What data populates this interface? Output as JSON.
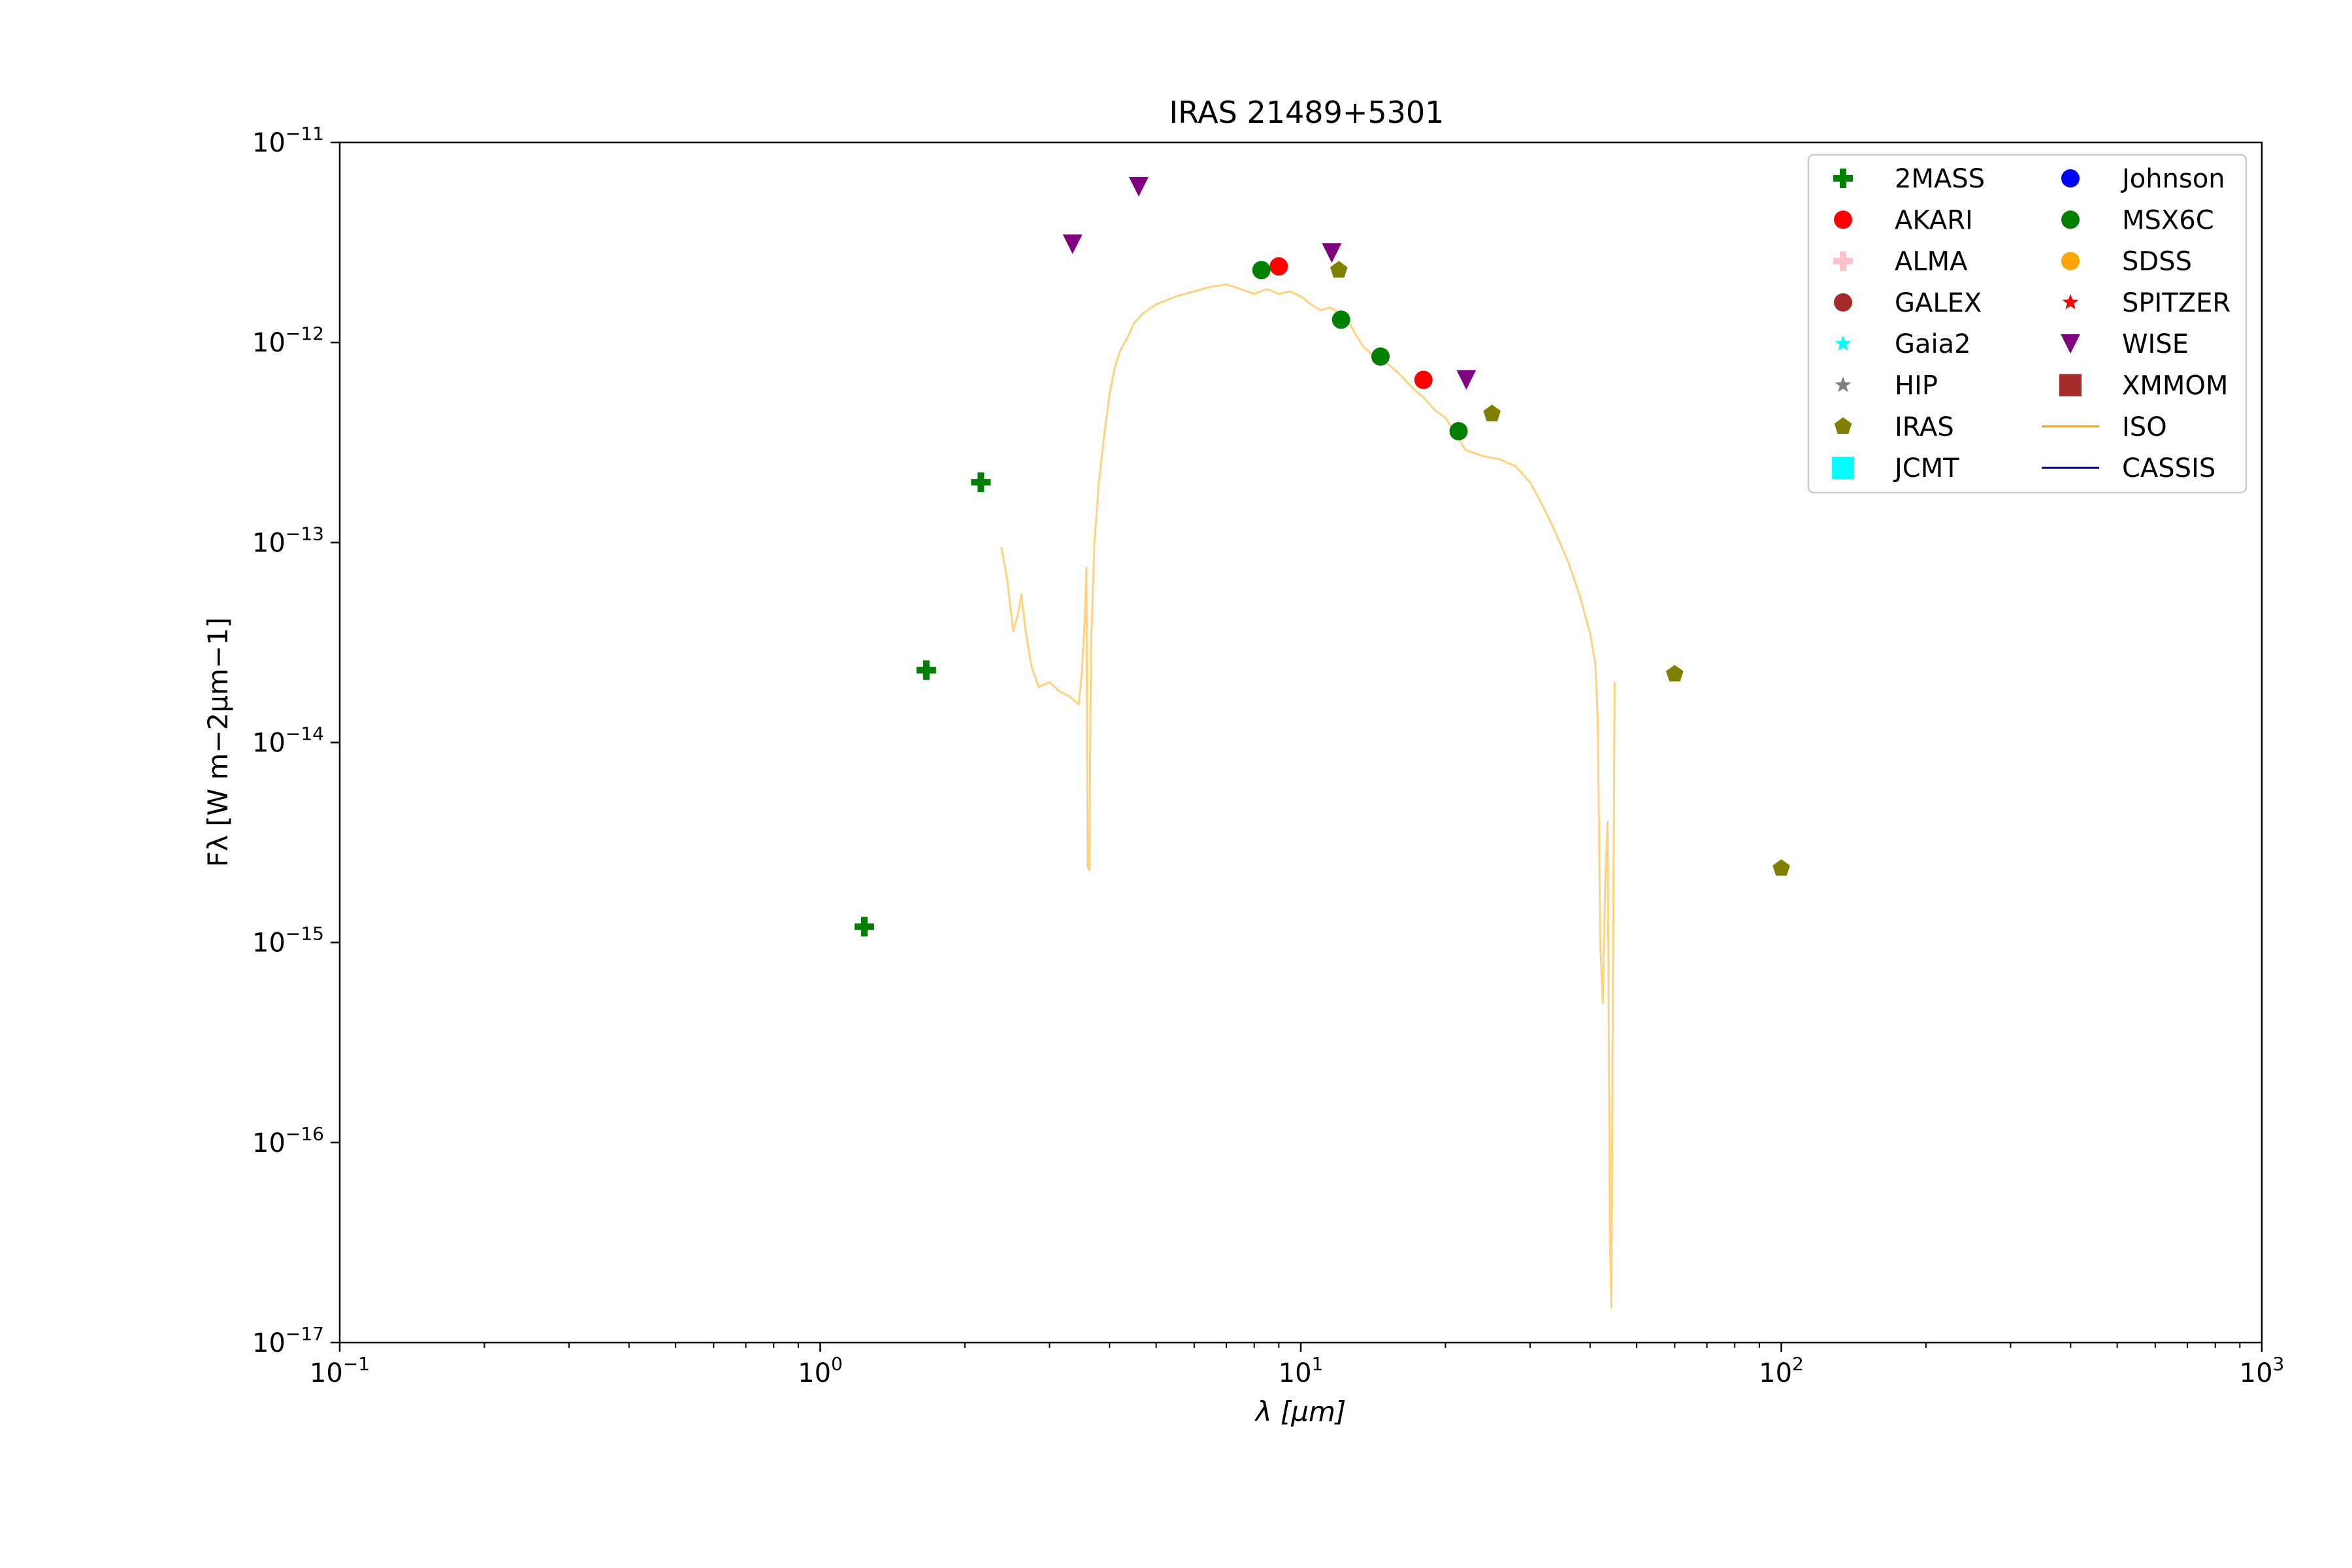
{
  "chart_data": {
    "type": "scatter",
    "title": "IRAS 21489+5301",
    "xlabel": "λ [μm]",
    "ylabel": "Fλ [W m−2μm−1]",
    "xscale": "log",
    "yscale": "log",
    "xlim": [
      0.1,
      1000
    ],
    "ylim": [
      1e-17,
      1e-11
    ],
    "x_ticks": [
      {
        "value": 0.1,
        "base": "10",
        "exp": "−1"
      },
      {
        "value": 1,
        "base": "10",
        "exp": "0"
      },
      {
        "value": 10,
        "base": "10",
        "exp": "1"
      },
      {
        "value": 100,
        "base": "10",
        "exp": "2"
      },
      {
        "value": 1000,
        "base": "10",
        "exp": "3"
      }
    ],
    "y_ticks": [
      {
        "value": 1e-11,
        "base": "10",
        "exp": "−11"
      },
      {
        "value": 1e-12,
        "base": "10",
        "exp": "−12"
      },
      {
        "value": 1e-13,
        "base": "10",
        "exp": "−13"
      },
      {
        "value": 1e-14,
        "base": "10",
        "exp": "−14"
      },
      {
        "value": 1e-15,
        "base": "10",
        "exp": "−15"
      },
      {
        "value": 1e-16,
        "base": "10",
        "exp": "−16"
      },
      {
        "value": 1e-17,
        "base": "10",
        "exp": "−17"
      }
    ],
    "grid": false,
    "legend_position": "top-right",
    "series": [
      {
        "name": "2MASS",
        "marker": "plus",
        "color": "#008000",
        "points": [
          [
            1.235,
            1.2e-15
          ],
          [
            1.662,
            2.3e-14
          ],
          [
            2.159,
            2e-13
          ]
        ]
      },
      {
        "name": "AKARI",
        "marker": "circle",
        "color": "#ff0000",
        "points": [
          [
            9.0,
            2.4e-12
          ],
          [
            18.0,
            6.5e-13
          ]
        ]
      },
      {
        "name": "ALMA",
        "marker": "plus",
        "color": "#ffc0cb",
        "points": []
      },
      {
        "name": "GALEX",
        "marker": "circle",
        "color": "#a52a2a",
        "points": []
      },
      {
        "name": "Gaia2",
        "marker": "star",
        "color": "#00ffff",
        "points": []
      },
      {
        "name": "HIP",
        "marker": "star",
        "color": "#808080",
        "points": []
      },
      {
        "name": "IRAS",
        "marker": "pentagon",
        "color": "#808000",
        "points": [
          [
            12.0,
            2.3e-12
          ],
          [
            25.0,
            4.4e-13
          ],
          [
            60.0,
            2.2e-14
          ],
          [
            100.0,
            2.35e-15
          ]
        ]
      },
      {
        "name": "JCMT",
        "marker": "square",
        "color": "#00ffff",
        "points": []
      },
      {
        "name": "Johnson",
        "marker": "circle",
        "color": "#0000ff",
        "points": []
      },
      {
        "name": "MSX6C",
        "marker": "circle",
        "color": "#008000",
        "points": [
          [
            8.28,
            2.3e-12
          ],
          [
            12.13,
            1.3e-12
          ],
          [
            14.65,
            8.5e-13
          ],
          [
            21.3,
            3.6e-13
          ]
        ]
      },
      {
        "name": "SDSS",
        "marker": "circle",
        "color": "#ffa500",
        "points": []
      },
      {
        "name": "SPITZER",
        "marker": "star",
        "color": "#ff0000",
        "points": []
      },
      {
        "name": "WISE",
        "marker": "triangle-down",
        "color": "#800080",
        "points": [
          [
            3.35,
            3.1e-12
          ],
          [
            4.6,
            6e-12
          ],
          [
            11.6,
            2.8e-12
          ],
          [
            22.1,
            6.5e-13
          ]
        ]
      },
      {
        "name": "XMMOM",
        "marker": "square",
        "color": "#a52a2a",
        "points": []
      },
      {
        "name": "ISO",
        "marker": "line",
        "color": "#ffa500",
        "points": [
          [
            2.38,
            9.5e-14
          ],
          [
            2.45,
            6.5e-14
          ],
          [
            2.52,
            3.6e-14
          ],
          [
            2.58,
            4.4e-14
          ],
          [
            2.62,
            5.5e-14
          ],
          [
            2.68,
            3.5e-14
          ],
          [
            2.75,
            2.4e-14
          ],
          [
            2.85,
            1.9e-14
          ],
          [
            3.0,
            2e-14
          ],
          [
            3.15,
            1.8e-14
          ],
          [
            3.3,
            1.7e-14
          ],
          [
            3.45,
            1.55e-14
          ],
          [
            3.5,
            2.2e-14
          ],
          [
            3.55,
            4e-14
          ],
          [
            3.58,
            7.5e-14
          ],
          [
            3.6,
            2.4e-15
          ],
          [
            3.63,
            2.3e-15
          ],
          [
            3.66,
            3e-14
          ],
          [
            3.72,
            1e-13
          ],
          [
            3.8,
            2e-13
          ],
          [
            3.9,
            3.5e-13
          ],
          [
            4.0,
            5.5e-13
          ],
          [
            4.1,
            7.5e-13
          ],
          [
            4.2,
            9e-13
          ],
          [
            4.35,
            1.05e-12
          ],
          [
            4.5,
            1.25e-12
          ],
          [
            4.7,
            1.4e-12
          ],
          [
            5.0,
            1.55e-12
          ],
          [
            5.5,
            1.7e-12
          ],
          [
            6.0,
            1.8e-12
          ],
          [
            6.5,
            1.9e-12
          ],
          [
            7.0,
            1.95e-12
          ],
          [
            7.5,
            1.85e-12
          ],
          [
            8.0,
            1.75e-12
          ],
          [
            8.5,
            1.85e-12
          ],
          [
            9.0,
            1.75e-12
          ],
          [
            9.5,
            1.8e-12
          ],
          [
            10.0,
            1.7e-12
          ],
          [
            10.5,
            1.55e-12
          ],
          [
            11.0,
            1.45e-12
          ],
          [
            11.5,
            1.5e-12
          ],
          [
            12.0,
            1.4e-12
          ],
          [
            12.5,
            1.3e-12
          ],
          [
            13.0,
            1.1e-12
          ],
          [
            13.5,
            9.5e-13
          ],
          [
            14.0,
            8.8e-13
          ],
          [
            15.0,
            8e-13
          ],
          [
            16.0,
            7e-13
          ],
          [
            17.0,
            6e-13
          ],
          [
            18.0,
            5.3e-13
          ],
          [
            19.0,
            4.6e-13
          ],
          [
            20.0,
            4.2e-13
          ],
          [
            21.0,
            3.5e-13
          ],
          [
            22.0,
            2.9e-13
          ],
          [
            24.0,
            2.7e-13
          ],
          [
            26.0,
            2.6e-13
          ],
          [
            28.0,
            2.4e-13
          ],
          [
            30.0,
            2e-13
          ],
          [
            32.0,
            1.5e-13
          ],
          [
            34.0,
            1.1e-13
          ],
          [
            36.0,
            8e-14
          ],
          [
            38.0,
            5.5e-14
          ],
          [
            40.0,
            3.5e-14
          ],
          [
            41.0,
            2.5e-14
          ],
          [
            41.5,
            1.3e-14
          ],
          [
            42.0,
            1e-15
          ],
          [
            42.5,
            5e-16
          ],
          [
            43.0,
            2e-15
          ],
          [
            43.5,
            4e-15
          ],
          [
            44.0,
            3e-17
          ],
          [
            44.3,
            1.5e-17
          ],
          [
            44.6,
            5e-16
          ],
          [
            45.0,
            2e-14
          ]
        ]
      },
      {
        "name": "CASSIS",
        "marker": "line",
        "color": "#00008b",
        "points": []
      }
    ]
  }
}
